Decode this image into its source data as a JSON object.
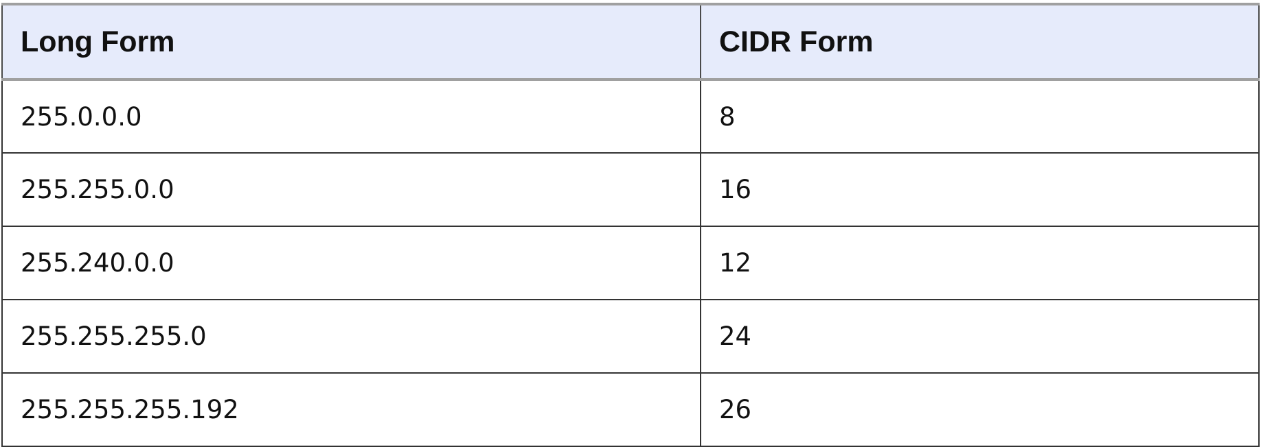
{
  "table": {
    "headers": [
      "Long Form",
      "CIDR Form"
    ],
    "rows": [
      [
        "255.0.0.0",
        "8"
      ],
      [
        "255.255.0.0",
        "16"
      ],
      [
        "255.240.0.0",
        "12"
      ],
      [
        "255.255.255.0",
        "24"
      ],
      [
        "255.255.255.192",
        "26"
      ]
    ]
  }
}
